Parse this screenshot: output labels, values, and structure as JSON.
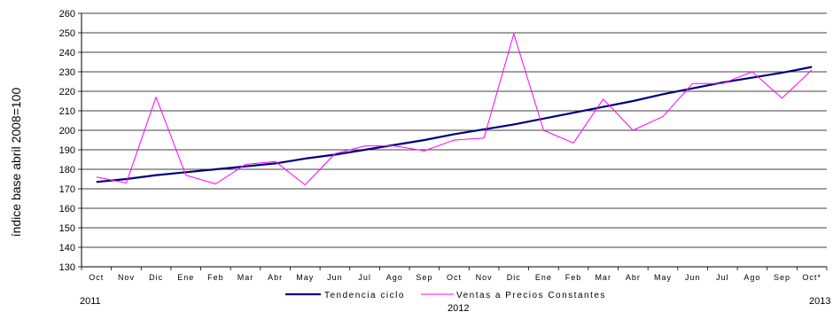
{
  "chart_data": {
    "type": "line",
    "ylabel": "índice base abril 2008=100",
    "ylim": [
      130,
      260
    ],
    "yticks": [
      130,
      140,
      150,
      160,
      170,
      180,
      190,
      200,
      210,
      220,
      230,
      240,
      250,
      260
    ],
    "grid": true,
    "legend_position": "bottom",
    "categories": [
      "Oct",
      "Nov",
      "Dic",
      "Ene",
      "Feb",
      "Mar",
      "Abr",
      "May",
      "Jun",
      "Jul",
      "Ago",
      "Sep",
      "Oct",
      "Nov",
      "Dic",
      "Ene",
      "Feb",
      "Mar",
      "Abr",
      "May",
      "Jun",
      "Jul",
      "Ago",
      "Sep",
      "Oct*"
    ],
    "year_labels": [
      "2011",
      "2012",
      "2013"
    ],
    "series": [
      {
        "name": "Tendencia ciclo",
        "color": "#000080",
        "values": [
          173.5,
          175,
          177,
          178.5,
          180,
          181.5,
          183,
          185.5,
          187.5,
          190,
          192.5,
          195,
          198,
          200.5,
          203,
          206,
          209,
          212,
          215,
          218.5,
          221.5,
          224.5,
          227,
          229.5,
          232.5
        ]
      },
      {
        "name": "Ventas a Precios Constantes",
        "color": "#ff00ff",
        "values": [
          176,
          173,
          217,
          177,
          172.5,
          182.5,
          184,
          172,
          188,
          192,
          192,
          189.5,
          195,
          196,
          249.5,
          200,
          193.5,
          216,
          200,
          207,
          224,
          224,
          230,
          216.5,
          231
        ]
      }
    ]
  }
}
